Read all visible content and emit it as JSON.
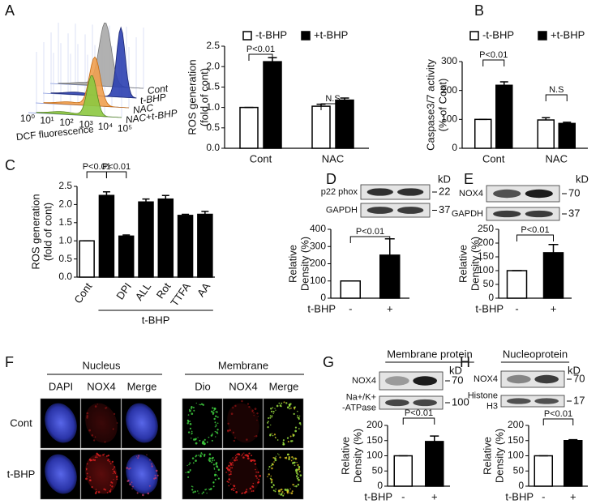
{
  "figure": {
    "A_flow": {
      "panel": "A",
      "series_labels": [
        "Cont",
        "t-BHP",
        "NAC",
        "NAC+t-BHP"
      ],
      "xticks": [
        "10⁰",
        "10¹",
        "10²",
        "10³",
        "10⁴",
        "10⁵"
      ],
      "xlabel": "DCF fluorescence"
    },
    "F": {
      "panel": "F",
      "groups": [
        "Nucleus",
        "Membrane"
      ],
      "columns": [
        "DAPI",
        "NOX4",
        "Merge",
        "Dio",
        "NOX4",
        "Merge"
      ],
      "rows": [
        "Cont",
        "t-BHP"
      ]
    }
  },
  "chart_data": [
    {
      "type": "bar",
      "categories": [
        "Cont",
        "NAC"
      ],
      "series": [
        {
          "name": "-t-BHP",
          "color": "#ffffff",
          "values": [
            1.0,
            1.03
          ],
          "errors": [
            0,
            0.05
          ]
        },
        {
          "name": "+t-BHP",
          "color": "#000000",
          "values": [
            2.12,
            1.18
          ],
          "errors": [
            0.1,
            0.05
          ]
        }
      ],
      "ylabel": [
        "ROS generation",
        "(fold of cont)"
      ],
      "ylim": [
        0,
        2.5
      ],
      "yticks": [
        {
          "value": 0,
          "label": "0.0"
        },
        0.5,
        {
          "value": 1,
          "label": "1.0"
        },
        1.5,
        {
          "value": 2,
          "label": "2.0"
        },
        2.5
      ],
      "annotations": [
        "P<0.01",
        "N.S"
      ]
    },
    {
      "type": "bar",
      "panel": "B",
      "categories": [
        "Cont",
        "NAC"
      ],
      "series": [
        {
          "name": "-t-BHP",
          "color": "#ffffff",
          "values": [
            100,
            98
          ],
          "errors": [
            0,
            8
          ]
        },
        {
          "name": "+t-BHP",
          "color": "#000000",
          "values": [
            218,
            86
          ],
          "errors": [
            12,
            4
          ]
        }
      ],
      "ylabel": [
        "Caspase3/7 activity",
        "(% of Cont)"
      ],
      "ylim": [
        0,
        300
      ],
      "yticks": [
        0,
        100,
        200,
        300
      ],
      "annotations": [
        "P<0.01",
        "N.S"
      ]
    },
    {
      "type": "bar",
      "panel": "C",
      "categories": [
        "Cont",
        null,
        "DPI",
        "ALL",
        "Rot",
        "TTFA",
        "AA"
      ],
      "values": [
        1.0,
        2.25,
        1.13,
        2.07,
        2.15,
        1.7,
        1.73
      ],
      "errors": [
        0,
        0.1,
        0.03,
        0.08,
        0.1,
        0.03,
        0.08
      ],
      "colors": [
        "#ffffff",
        "#000000",
        "#000000",
        "#000000",
        "#000000",
        "#000000",
        "#000000"
      ],
      "group_label": "t-BHP",
      "ylabel": [
        "ROS generation",
        "(fold of cont)"
      ],
      "ylim": [
        0,
        2.5
      ],
      "yticks": [
        {
          "value": 0,
          "label": "0.0"
        },
        0.5,
        {
          "value": 1,
          "label": "1.0"
        },
        1.5,
        {
          "value": 2,
          "label": "2.0"
        },
        2.5
      ],
      "annotations": [
        "P<0.01",
        "P<0.01"
      ]
    },
    {
      "type": "bar",
      "panel": "D",
      "categories": [
        "-",
        "+"
      ],
      "values": [
        100,
        250
      ],
      "errors": [
        0,
        95
      ],
      "colors": [
        "#ffffff",
        "#000000"
      ],
      "group_label": "t-BHP",
      "ylabel": [
        "Relative",
        "Density (%)"
      ],
      "ylim": [
        0,
        400
      ],
      "yticks": [
        0,
        100,
        200,
        300,
        400
      ],
      "annotations": [
        "P<0.01"
      ],
      "blot_labels": [
        [
          "p22 phox"
        ],
        [
          "GAPDH"
        ]
      ],
      "kd_unit": "kD",
      "kd": [
        22,
        37
      ]
    },
    {
      "type": "bar",
      "panel": "E",
      "categories": [
        "-",
        "+"
      ],
      "values": [
        100,
        165
      ],
      "errors": [
        0,
        30
      ],
      "colors": [
        "#ffffff",
        "#000000"
      ],
      "group_label": "t-BHP",
      "ylabel": [
        "Relative",
        "Density (%)"
      ],
      "ylim": [
        0,
        250
      ],
      "yticks": [
        0,
        50,
        100,
        150,
        200,
        250
      ],
      "annotations": [
        "P<0.01"
      ],
      "blot_labels": [
        [
          "NOX4"
        ],
        [
          "GAPDH"
        ]
      ],
      "kd_unit": "kD",
      "kd": [
        70,
        37
      ]
    },
    {
      "type": "bar",
      "panel": "G",
      "title": "Membrane protein",
      "categories": [
        "-",
        "+"
      ],
      "values": [
        100,
        147
      ],
      "errors": [
        0,
        18
      ],
      "colors": [
        "#ffffff",
        "#000000"
      ],
      "group_label": "t-BHP",
      "ylabel": [
        "Relative",
        "Density (%)"
      ],
      "ylim": [
        0,
        200
      ],
      "yticks": [
        0,
        50,
        100,
        150,
        200
      ],
      "annotations": [
        "P<0.01"
      ],
      "blot_labels": [
        [
          "NOX4"
        ],
        [
          "Na+/K+",
          "-ATPase"
        ]
      ],
      "kd_unit": "kD",
      "kd": [
        70,
        100
      ]
    },
    {
      "type": "bar",
      "panel": "H",
      "title": "Nucleoprotein",
      "categories": [
        "-",
        "+"
      ],
      "values": [
        100,
        150
      ],
      "errors": [
        0,
        3
      ],
      "colors": [
        "#ffffff",
        "#000000"
      ],
      "group_label": "t-BHP",
      "ylabel": [
        "Relative",
        "Density (%)"
      ],
      "ylim": [
        0,
        200
      ],
      "yticks": [
        0,
        50,
        100,
        150,
        200
      ],
      "annotations": [
        "P<0.01"
      ],
      "blot_labels": [
        [
          "NOX4"
        ],
        [
          "Histone",
          "H3"
        ]
      ],
      "kd_unit": "kD",
      "kd": [
        70,
        17
      ]
    }
  ]
}
